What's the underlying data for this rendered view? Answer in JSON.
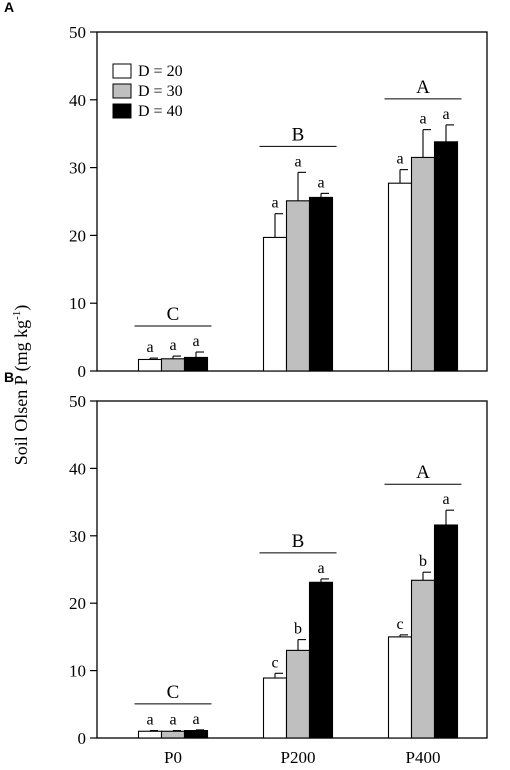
{
  "ylabel_main": "Soil Olsen P (mg kg",
  "ylabel_sup": "-1",
  "ylabel_close": ")",
  "legend": [
    {
      "label": "D = 20",
      "color": "#ffffff"
    },
    {
      "label": "D = 30",
      "color": "#bfbfbf"
    },
    {
      "label": "D = 40",
      "color": "#000000"
    }
  ],
  "chart_data": [
    {
      "panel": "A",
      "type": "bar",
      "categories": [
        "P0",
        "P200",
        "P400"
      ],
      "ylim": [
        0,
        50
      ],
      "yticks": [
        0,
        10,
        20,
        30,
        40,
        50
      ],
      "series": [
        {
          "name": "D = 20",
          "values": [
            1.7,
            19.7,
            27.7
          ],
          "errors": [
            0.2,
            3.5,
            2.0
          ],
          "letters": [
            "a",
            "a",
            "a"
          ]
        },
        {
          "name": "D = 30",
          "values": [
            1.8,
            25.1,
            31.5
          ],
          "errors": [
            0.4,
            4.2,
            4.1
          ],
          "letters": [
            "a",
            "a",
            "a"
          ]
        },
        {
          "name": "D = 40",
          "values": [
            2.0,
            25.6,
            33.8
          ],
          "errors": [
            0.8,
            0.6,
            2.5
          ],
          "letters": [
            "a",
            "a",
            "a"
          ]
        }
      ],
      "group_letters": [
        "C",
        "B",
        "A"
      ]
    },
    {
      "panel": "B",
      "type": "bar",
      "categories": [
        "P0",
        "P200",
        "P400"
      ],
      "ylim": [
        0,
        50
      ],
      "yticks": [
        0,
        10,
        20,
        30,
        40,
        50
      ],
      "series": [
        {
          "name": "D = 20",
          "values": [
            1.0,
            8.9,
            15.0
          ],
          "errors": [
            0.1,
            0.7,
            0.3
          ],
          "letters": [
            "a",
            "c",
            "c"
          ]
        },
        {
          "name": "D = 30",
          "values": [
            1.0,
            13.0,
            23.4
          ],
          "errors": [
            0.1,
            1.6,
            1.2
          ],
          "letters": [
            "a",
            "b",
            "b"
          ]
        },
        {
          "name": "D = 40",
          "values": [
            1.1,
            23.1,
            31.6
          ],
          "errors": [
            0.1,
            0.5,
            2.2
          ],
          "letters": [
            "a",
            "a",
            "a"
          ]
        }
      ],
      "group_letters": [
        "C",
        "B",
        "A"
      ]
    }
  ]
}
